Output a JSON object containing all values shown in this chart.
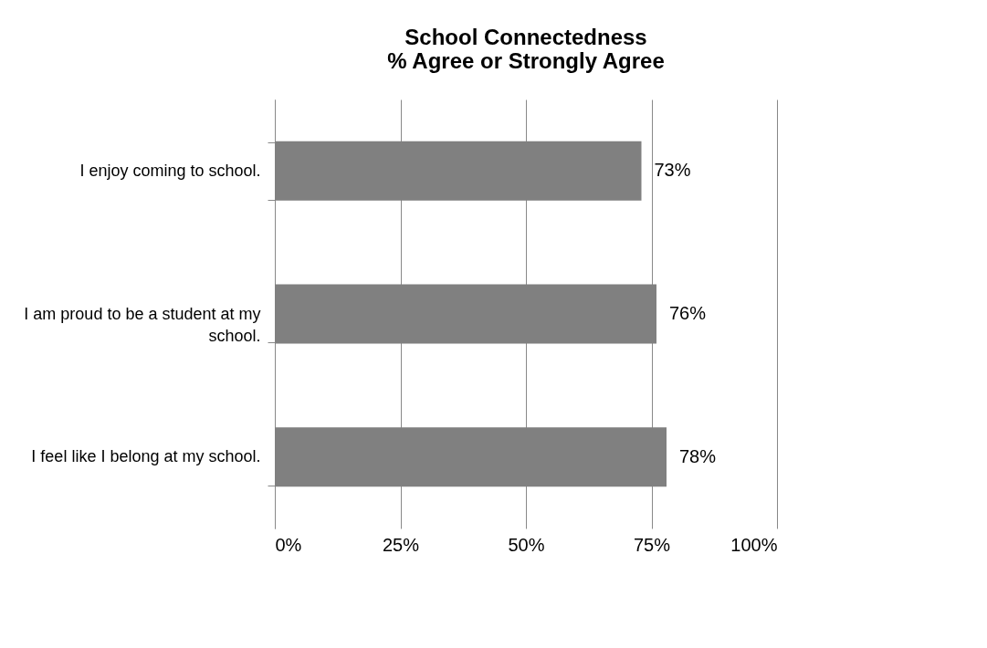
{
  "chart_data": {
    "type": "bar",
    "orientation": "horizontal",
    "title": "School Connectedness\n% Agree or Strongly Agree",
    "categories": [
      "I enjoy coming to school.",
      "I am proud to be a student at my school.",
      "I feel like I belong at my school."
    ],
    "values": [
      73,
      76,
      78
    ],
    "color": "#808080",
    "value_labels": [
      "73%",
      "76%",
      "78%"
    ],
    "xlim": [
      0,
      100
    ],
    "xticks": [
      {
        "value": 0,
        "label": "0%"
      },
      {
        "value": 25,
        "label": "25%"
      },
      {
        "value": 50,
        "label": "50%"
      },
      {
        "value": 75,
        "label": "75%"
      },
      {
        "value": 100,
        "label": "100%"
      }
    ],
    "grid": "x"
  }
}
